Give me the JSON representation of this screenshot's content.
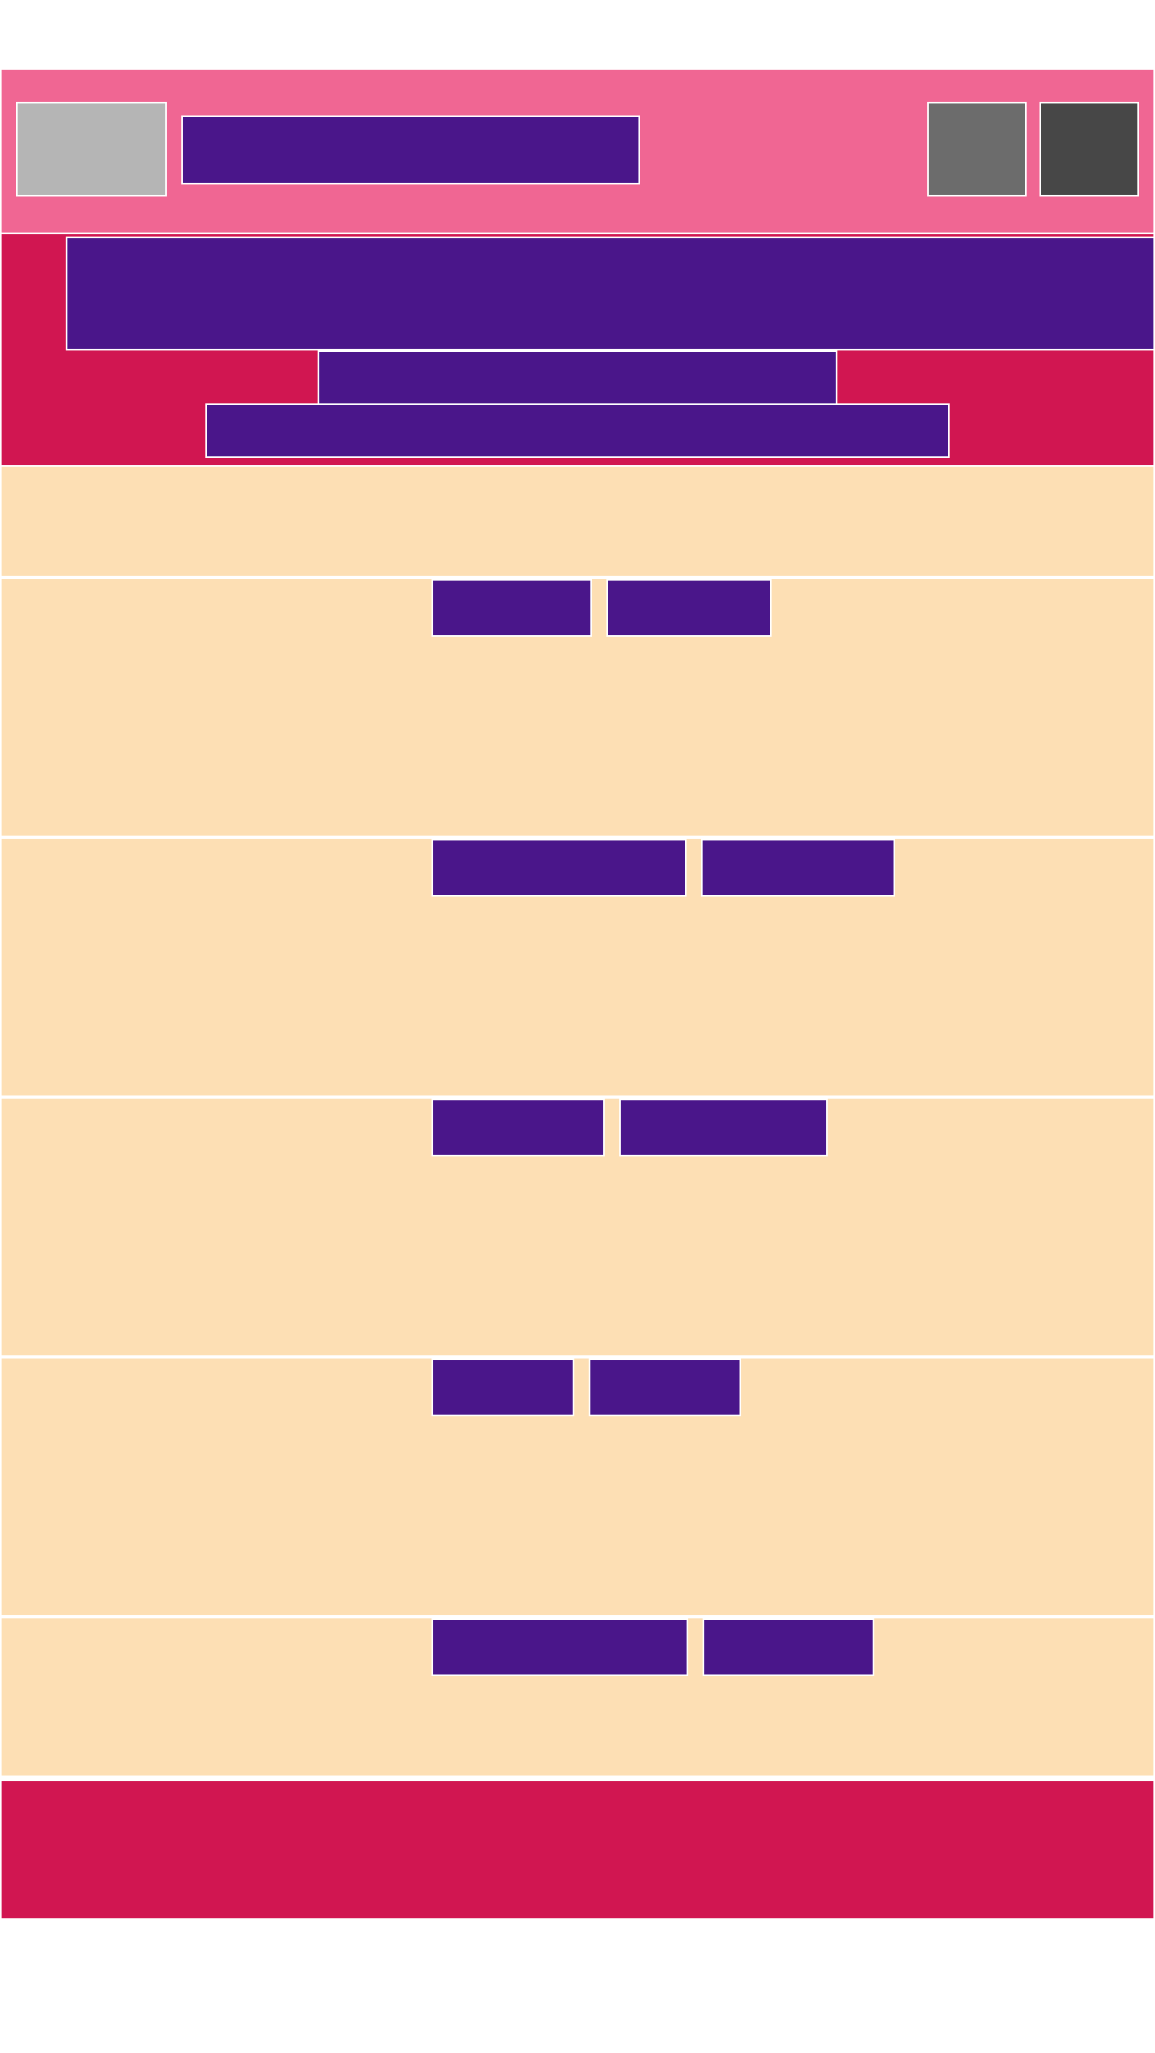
{
  "colors": {
    "header_bg": "#f06693",
    "hero_bg": "#d11651",
    "content_bg": "#fddfb4",
    "block": "#4a168a",
    "logo": "#b5b5b5",
    "button_1": "#6c6c6c",
    "button_2": "#474747",
    "footer_bg": "#d11651",
    "divider": "#ffffff"
  },
  "header": {
    "title": "",
    "buttons": [
      {
        "icon": "action-button-icon",
        "label": ""
      },
      {
        "icon": "action-button-icon",
        "label": ""
      }
    ]
  },
  "hero": {
    "headline": "",
    "subheadline": "",
    "cta": ""
  },
  "intro": {
    "text": ""
  },
  "rows": [
    {
      "label": "",
      "meta": ""
    },
    {
      "label": "",
      "meta": ""
    },
    {
      "label": "",
      "meta": ""
    },
    {
      "label": "",
      "meta": ""
    },
    {
      "label": "",
      "meta": ""
    }
  ],
  "footer": {
    "text": ""
  }
}
